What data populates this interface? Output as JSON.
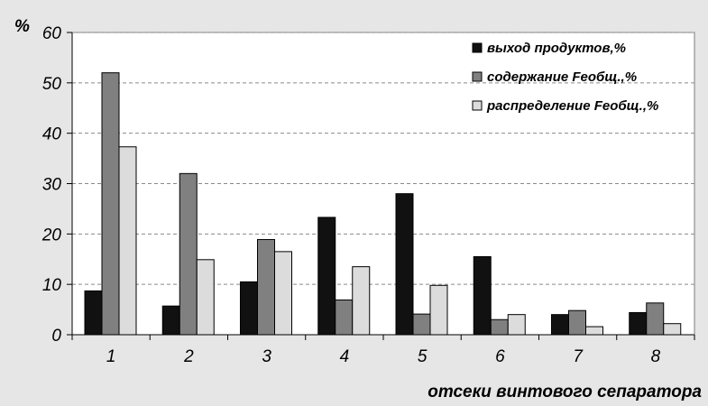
{
  "chart_data": {
    "type": "bar",
    "title": "",
    "ylabel": "%",
    "xlabel": "отсеки винтового сепаратора",
    "ylim": [
      0,
      60
    ],
    "yticks": [
      0,
      10,
      20,
      30,
      40,
      50,
      60
    ],
    "grid": "horizontal dashed",
    "legend_position": "top-right",
    "categories": [
      "1",
      "2",
      "3",
      "4",
      "5",
      "6",
      "7",
      "8"
    ],
    "series": [
      {
        "name": "выход продуктов,%",
        "color": "#111111",
        "values": [
          8.7,
          5.7,
          10.5,
          23.3,
          28.0,
          15.5,
          4.0,
          4.4
        ]
      },
      {
        "name": "содержание Feобщ.,%",
        "color": "#808080",
        "values": [
          52.0,
          32.0,
          18.9,
          6.9,
          4.1,
          3.0,
          4.8,
          6.3
        ]
      },
      {
        "name": "распределение Feобщ.,%",
        "color": "#dcdcdc",
        "values": [
          37.3,
          14.9,
          16.5,
          13.5,
          9.8,
          4.0,
          1.6,
          2.2
        ]
      }
    ]
  }
}
